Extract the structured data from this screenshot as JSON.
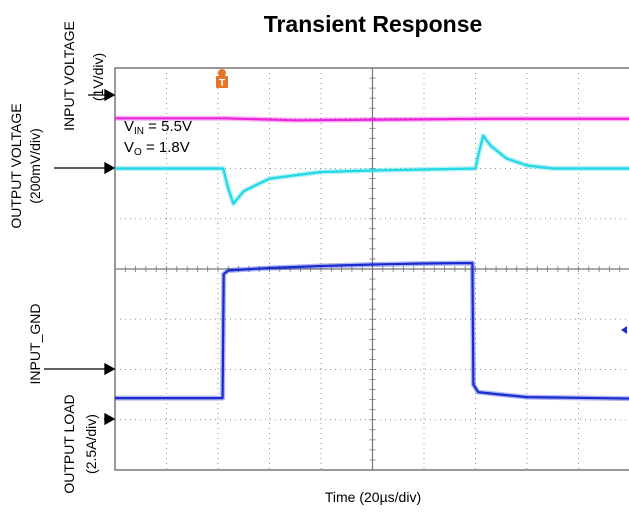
{
  "chart_data": {
    "type": "line",
    "title": "Transient Response",
    "xlabel": "Time (20µs/div)",
    "x_divisions": 10,
    "y_divisions": 8,
    "grid": true,
    "channel_labels": {
      "input_voltage": [
        "INPUT VOLTAGE",
        "(1V/div)"
      ],
      "output_voltage": [
        "OUTPUT VOLTAGE",
        "(200mV/div)"
      ],
      "output_load": [
        "OUTPUT LOAD",
        "(2.5A/div)"
      ],
      "input_gnd": "INPUT_GND"
    },
    "annotation": {
      "vin": {
        "main": "V",
        "sub": "IN",
        "rest": " = 5.5V"
      },
      "vo": {
        "main": "V",
        "sub": "O",
        "rest": " = 1.8V"
      }
    },
    "trigger_label": "T",
    "colors": {
      "input_voltage": "#ee22dd",
      "output_voltage": "#22d8e4",
      "output_load": "#1a2bd0",
      "trigger": "#e8732a",
      "grid": "#777777"
    },
    "series": [
      {
        "name": "INPUT VOLTAGE",
        "unit": "div",
        "x": [
          0,
          2.1,
          3.5,
          7.4,
          10
        ],
        "values": [
          7.0,
          7.0,
          6.96,
          6.99,
          6.99
        ]
      },
      {
        "name": "OUTPUT VOLTAGE",
        "unit": "div",
        "x": [
          0,
          2.1,
          2.2,
          2.3,
          2.5,
          3.0,
          4.0,
          5.0,
          6.0,
          7.0,
          7.05,
          7.15,
          7.3,
          7.6,
          8.0,
          8.5,
          10
        ],
        "values": [
          6.0,
          6.0,
          5.6,
          5.3,
          5.55,
          5.8,
          5.93,
          5.96,
          5.98,
          6.0,
          6.25,
          6.65,
          6.45,
          6.2,
          6.06,
          6.0,
          6.0
        ]
      },
      {
        "name": "OUTPUT LOAD",
        "unit": "div",
        "x": [
          0,
          2.09,
          2.11,
          2.2,
          2.5,
          3.0,
          4.0,
          5.0,
          6.0,
          6.94,
          6.96,
          7.05,
          7.5,
          8.0,
          10
        ],
        "values": [
          1.43,
          1.43,
          3.9,
          3.97,
          3.99,
          4.02,
          4.06,
          4.09,
          4.11,
          4.12,
          1.7,
          1.55,
          1.5,
          1.45,
          1.42
        ]
      }
    ]
  }
}
